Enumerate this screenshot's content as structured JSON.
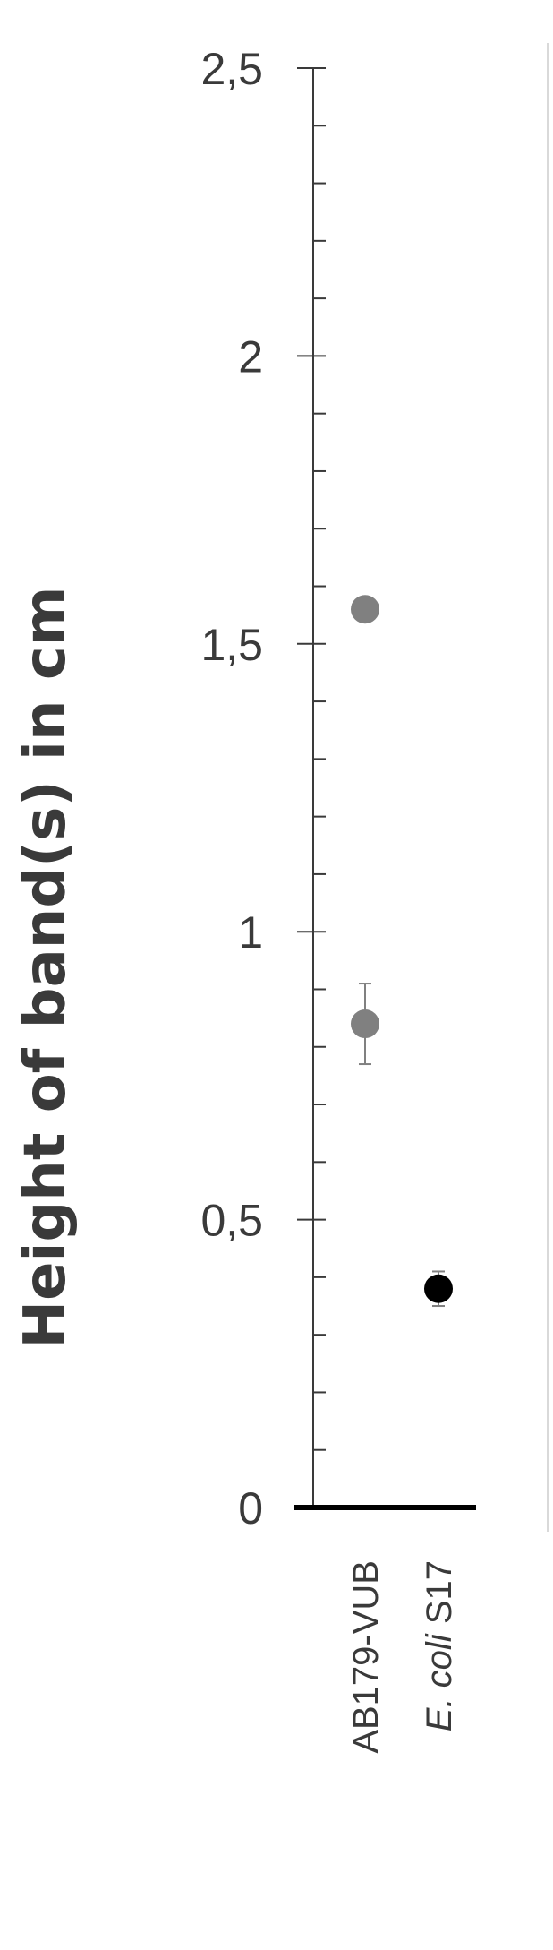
{
  "chart_data": {
    "type": "scatter",
    "ylabel": "Height of band(s) in cm",
    "ylim": [
      0,
      2.5
    ],
    "y_ticks": [
      "0",
      "0,5",
      "1",
      "1,5",
      "2",
      "2,5"
    ],
    "categories": [
      {
        "label": "AB179-VUB",
        "italic": "",
        "rest": "AB179-VUB"
      },
      {
        "label": "E. coli S17",
        "italic": "E. coli",
        "rest": " S17"
      }
    ],
    "points": [
      {
        "category": "AB179-VUB",
        "y": 1.56,
        "error": 0.02,
        "color": "#808080"
      },
      {
        "category": "AB179-VUB",
        "y": 0.84,
        "error": 0.07,
        "color": "#808080"
      },
      {
        "category": "E. coli S17",
        "y": 0.38,
        "error": 0.03,
        "color": "#000000"
      }
    ],
    "grid": false,
    "legend": "none"
  }
}
